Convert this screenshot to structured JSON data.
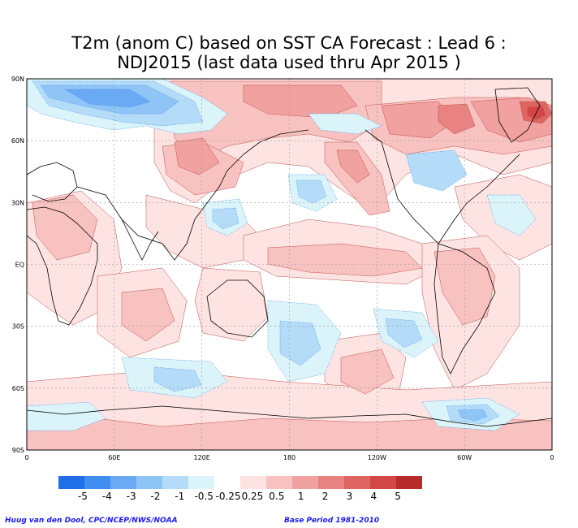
{
  "title": {
    "line1": "T2m (anom C) based on SST CA Forecast : Lead 6 :",
    "line2": "NDJ2015 (last data used thru Apr 2015 )"
  },
  "axes": {
    "lat_labels": [
      "90N",
      "60N",
      "30N",
      "EQ",
      "30S",
      "60S",
      "90S"
    ],
    "lon_labels": [
      "0",
      "60E",
      "120E",
      "180",
      "120W",
      "60W",
      "0"
    ]
  },
  "legend": {
    "colors": [
      "#1f6fe6",
      "#3f8ef0",
      "#6aaaf4",
      "#8fc4f6",
      "#b4dcf8",
      "#dbf4fa",
      "#ffffff",
      "#fde4e2",
      "#f8c2c0",
      "#f1a19f",
      "#e98381",
      "#df6563",
      "#d34847",
      "#b82b2b"
    ],
    "labels": [
      "-5",
      "-4",
      "-3",
      "-2",
      "-1",
      "-0.5",
      "-0.25",
      "0.25",
      "0.5",
      "1",
      "2",
      "3",
      "4",
      "5"
    ]
  },
  "credits": {
    "left": "Huug van den Dool, CPC/NCEP/NWS/NOAA",
    "right": "Base Period 1981-2010"
  },
  "map_colors": {
    "light_red": "#fde4e2",
    "pink": "#f8c2c0",
    "mid_red": "#f1a19f",
    "red": "#e98381",
    "dark_red": "#df6563",
    "darker_red": "#d34847",
    "light_blue": "#dbf4fa",
    "pale_blue": "#b4dcf8",
    "blue": "#8fc4f6",
    "deep_blue": "#6aaaf4",
    "strong_blue": "#3f8ef0"
  }
}
